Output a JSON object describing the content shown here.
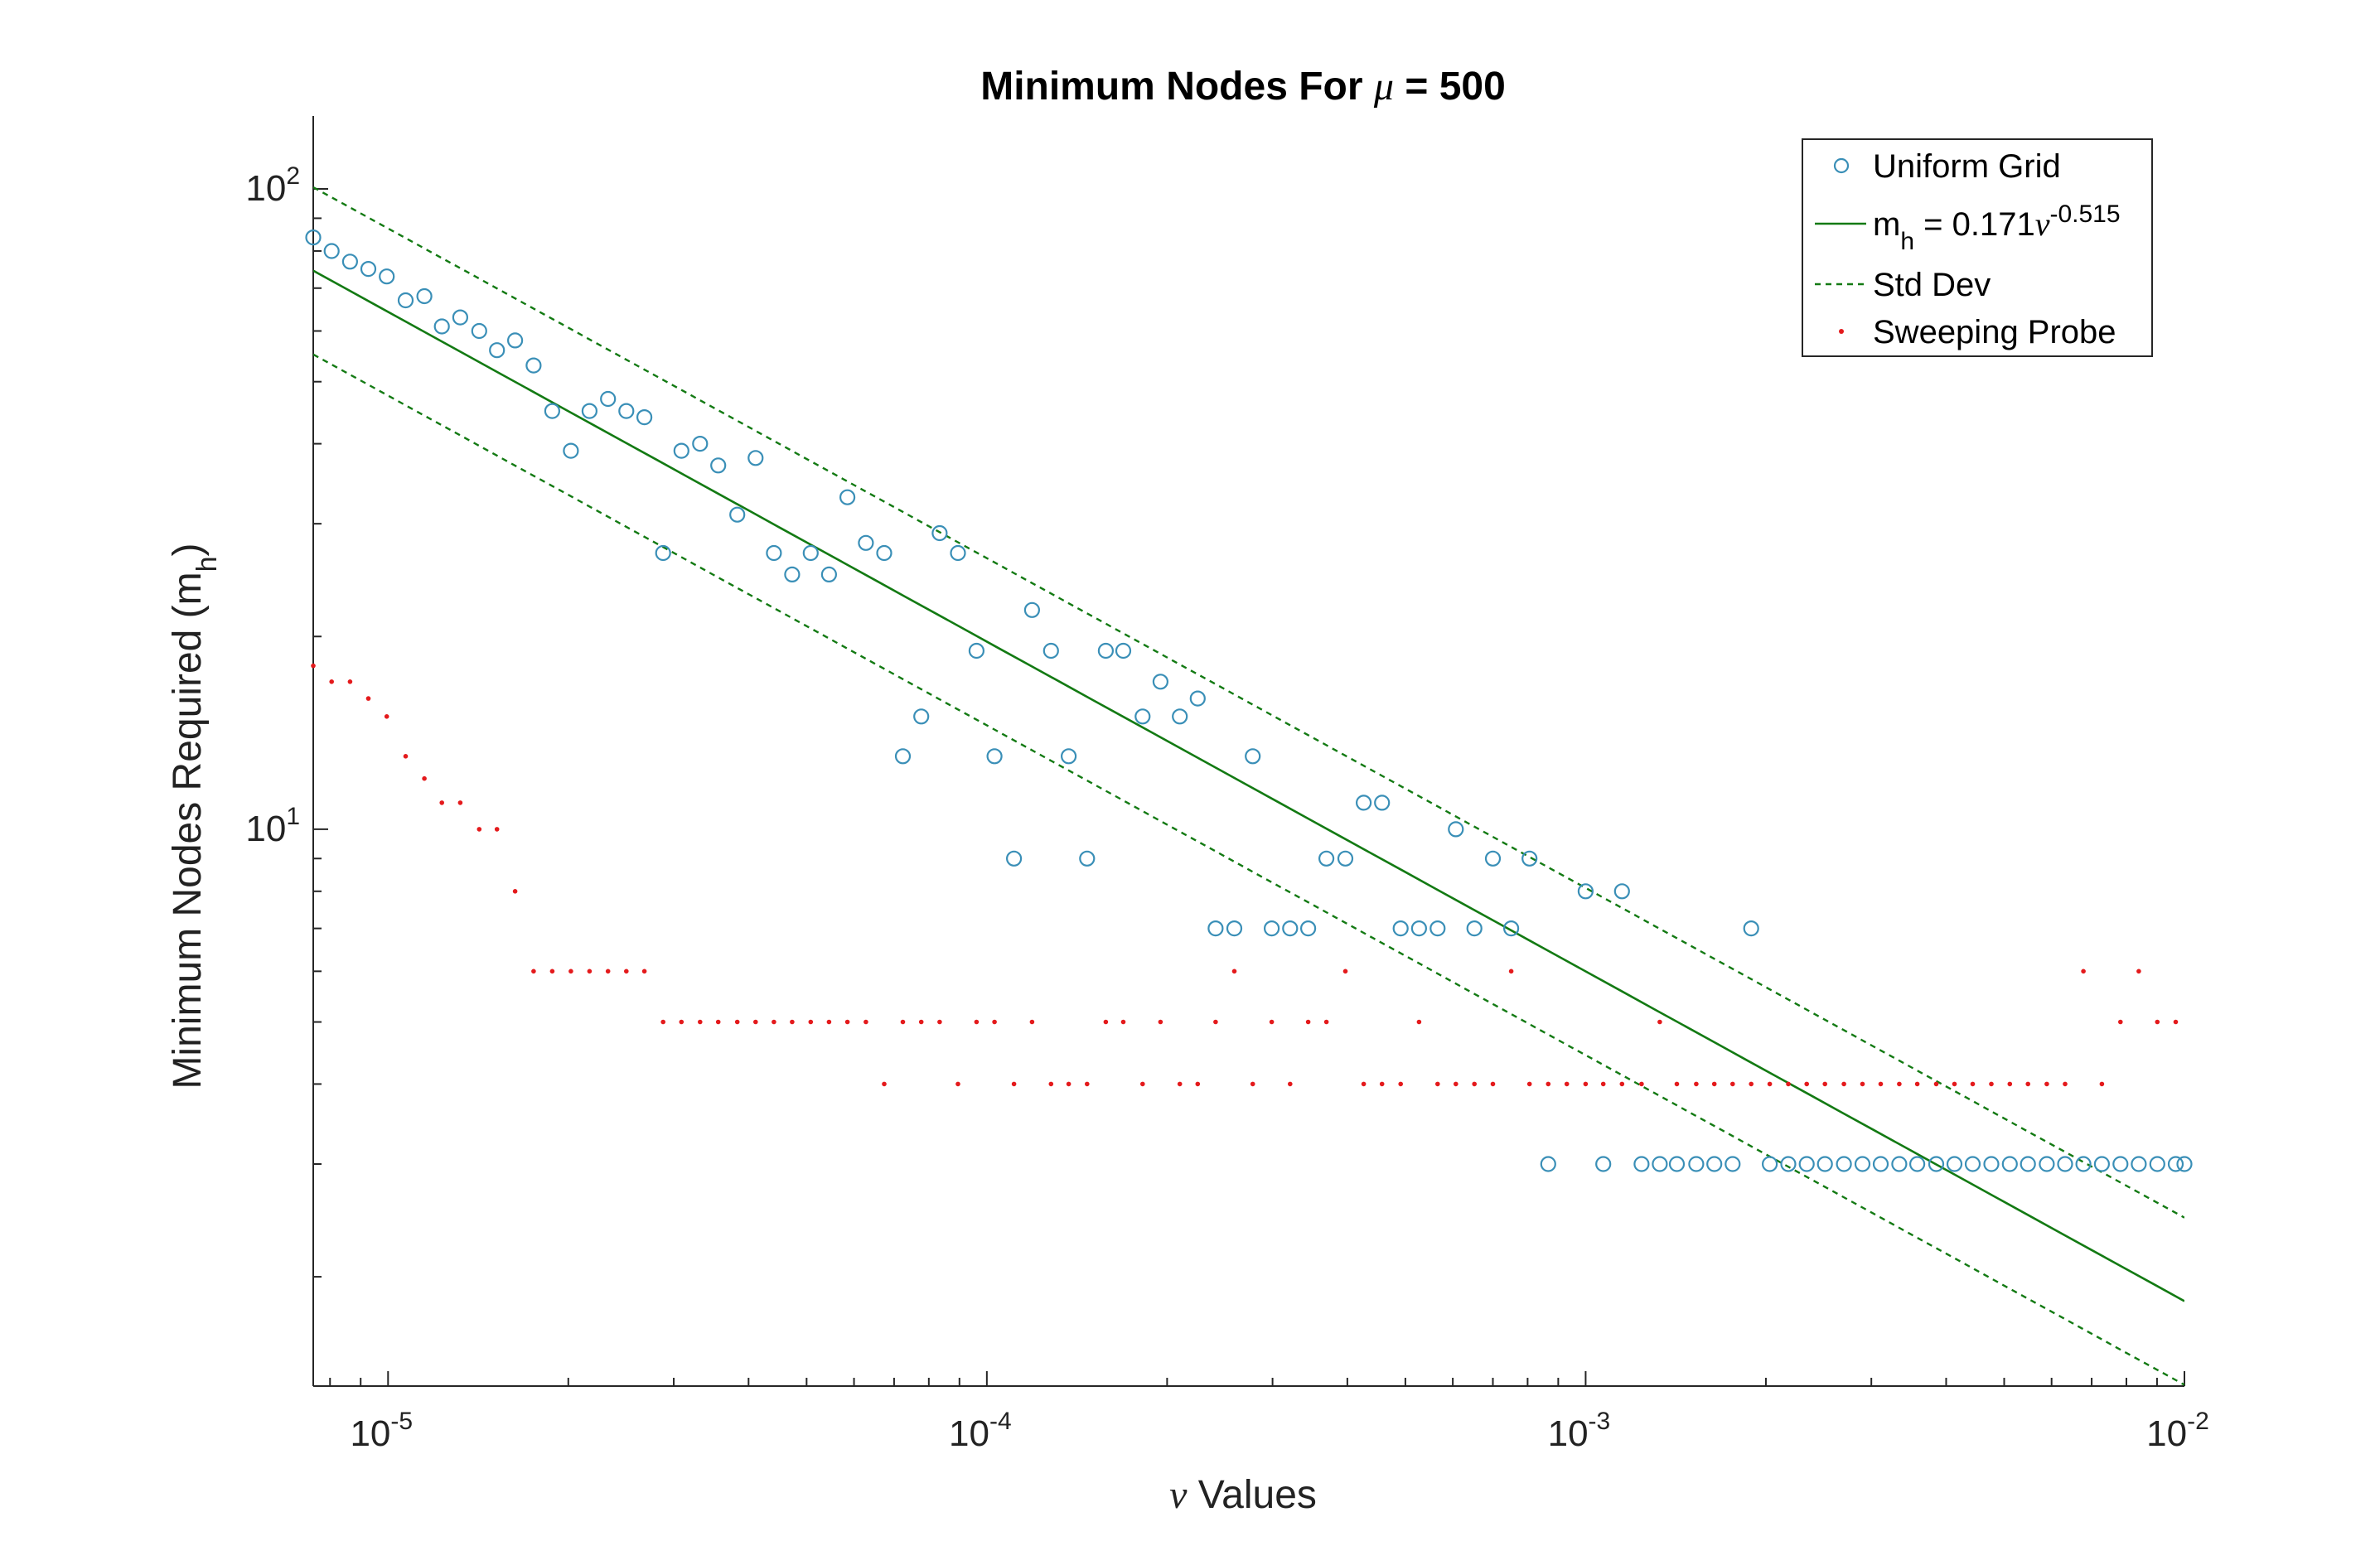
{
  "colors": {
    "uniform": "#3a8fb7",
    "fit": "#137a13",
    "probe": "#e41a1c",
    "axis": "#262626"
  },
  "chart_data": {
    "type": "scatter",
    "title_prefix": "Minimum Nodes For ",
    "title_symbol": "μ",
    "title_suffix": " = 500",
    "xlabel_symbol": "ν",
    "xlabel_suffix": " Values",
    "ylabel_main": "Minimum Nodes Required (m",
    "ylabel_sub": "h",
    "ylabel_end": ")",
    "x_scale": "log",
    "y_scale": "log",
    "xlim": [
      7.5e-06,
      0.01
    ],
    "ylim": [
      1.35,
      130
    ],
    "x_ticks": [
      {
        "base": "10",
        "exp": "-5",
        "value": 1e-05
      },
      {
        "base": "10",
        "exp": "-4",
        "value": 0.0001
      },
      {
        "base": "10",
        "exp": "-3",
        "value": 0.001
      },
      {
        "base": "10",
        "exp": "-2",
        "value": 0.01
      }
    ],
    "y_ticks": [
      {
        "base": "10",
        "exp": "1",
        "value": 10
      },
      {
        "base": "10",
        "exp": "2",
        "value": 100
      }
    ],
    "legend_position": "top-right",
    "legend": {
      "uniform": "Uniform Grid",
      "fit_prefix": "m",
      "fit_sub": "h",
      "fit_mid": " = 0.171",
      "fit_symbol": "ν",
      "fit_exp": "-0.515",
      "std": "Std Dev",
      "probe": "Sweeping Probe"
    },
    "fit": {
      "a": 0.171,
      "b": -0.515
    },
    "std_upper_factor": 1.35,
    "std_lower_factor": 0.74,
    "uniform_grid": [
      [
        7.5e-06,
        84
      ],
      [
        8.05e-06,
        80
      ],
      [
        8.64e-06,
        77
      ],
      [
        9.27e-06,
        75
      ],
      [
        9.95e-06,
        73
      ],
      [
        1.07e-05,
        67
      ],
      [
        1.15e-05,
        68
      ],
      [
        1.23e-05,
        61
      ],
      [
        1.32e-05,
        63
      ],
      [
        1.42e-05,
        60
      ],
      [
        1.52e-05,
        56
      ],
      [
        1.63e-05,
        58
      ],
      [
        1.75e-05,
        53
      ],
      [
        1.88e-05,
        45
      ],
      [
        2.02e-05,
        39
      ],
      [
        2.17e-05,
        45
      ],
      [
        2.33e-05,
        47
      ],
      [
        2.5e-05,
        45
      ],
      [
        2.68e-05,
        44
      ],
      [
        2.88e-05,
        27
      ],
      [
        3.09e-05,
        39
      ],
      [
        3.32e-05,
        40
      ],
      [
        3.56e-05,
        37
      ],
      [
        3.83e-05,
        31
      ],
      [
        4.11e-05,
        38
      ],
      [
        4.41e-05,
        27
      ],
      [
        4.73e-05,
        25
      ],
      [
        5.08e-05,
        27
      ],
      [
        5.45e-05,
        25
      ],
      [
        5.85e-05,
        33
      ],
      [
        6.28e-05,
        28
      ],
      [
        6.74e-05,
        27
      ],
      [
        7.24e-05,
        13
      ],
      [
        7.77e-05,
        15
      ],
      [
        8.34e-05,
        29
      ],
      [
        8.95e-05,
        27
      ],
      [
        9.61e-05,
        19
      ],
      [
        0.000103,
        13
      ],
      [
        0.000111,
        9
      ],
      [
        0.000119,
        22
      ],
      [
        0.000128,
        19
      ],
      [
        0.000137,
        13
      ],
      [
        0.000147,
        9
      ],
      [
        0.000158,
        19
      ],
      [
        0.000169,
        19
      ],
      [
        0.000182,
        15
      ],
      [
        0.000195,
        17
      ],
      [
        0.00021,
        15
      ],
      [
        0.000225,
        16
      ],
      [
        0.000241,
        7
      ],
      [
        0.000259,
        7
      ],
      [
        0.000278,
        13
      ],
      [
        0.000299,
        7
      ],
      [
        0.000321,
        7
      ],
      [
        0.000344,
        7
      ],
      [
        0.000369,
        9
      ],
      [
        0.000397,
        9
      ],
      [
        0.000426,
        11
      ],
      [
        0.000457,
        11
      ],
      [
        0.000491,
        7
      ],
      [
        0.000527,
        7
      ],
      [
        0.000566,
        7
      ],
      [
        0.000607,
        10
      ],
      [
        0.000652,
        7
      ],
      [
        0.0007,
        9
      ],
      [
        0.000751,
        7
      ],
      [
        0.000806,
        9
      ],
      [
        0.000866,
        3
      ],
      [
        0.001,
        8
      ],
      [
        0.00107,
        3
      ],
      [
        0.00115,
        8
      ],
      [
        0.00124,
        3
      ],
      [
        0.00133,
        3
      ],
      [
        0.00142,
        3
      ],
      [
        0.00153,
        3
      ],
      [
        0.00164,
        3
      ],
      [
        0.00176,
        3
      ],
      [
        0.00189,
        7
      ],
      [
        0.00203,
        3
      ],
      [
        0.00218,
        3
      ],
      [
        0.00234,
        3
      ],
      [
        0.00251,
        3
      ],
      [
        0.0027,
        3
      ],
      [
        0.0029,
        3
      ],
      [
        0.00311,
        3
      ],
      [
        0.00334,
        3
      ],
      [
        0.00358,
        3
      ],
      [
        0.00385,
        3
      ],
      [
        0.00413,
        3
      ],
      [
        0.00443,
        3
      ],
      [
        0.00476,
        3
      ],
      [
        0.00511,
        3
      ],
      [
        0.00548,
        3
      ],
      [
        0.00589,
        3
      ],
      [
        0.00632,
        3
      ],
      [
        0.00678,
        3
      ],
      [
        0.00728,
        3
      ],
      [
        0.00782,
        3
      ],
      [
        0.00839,
        3
      ],
      [
        0.00901,
        3
      ],
      [
        0.00967,
        3
      ],
      [
        0.01,
        3
      ]
    ],
    "sweeping_probe": [
      [
        7.5e-06,
        18
      ],
      [
        8.05e-06,
        17
      ],
      [
        8.64e-06,
        17
      ],
      [
        9.27e-06,
        16
      ],
      [
        9.95e-06,
        15
      ],
      [
        1.07e-05,
        13
      ],
      [
        1.15e-05,
        12
      ],
      [
        1.23e-05,
        11
      ],
      [
        1.32e-05,
        11
      ],
      [
        1.42e-05,
        10
      ],
      [
        1.52e-05,
        10
      ],
      [
        1.63e-05,
        8
      ],
      [
        1.75e-05,
        6
      ],
      [
        1.88e-05,
        6
      ],
      [
        2.02e-05,
        6
      ],
      [
        2.17e-05,
        6
      ],
      [
        2.33e-05,
        6
      ],
      [
        2.5e-05,
        6
      ],
      [
        2.68e-05,
        6
      ],
      [
        2.88e-05,
        5
      ],
      [
        3.09e-05,
        5
      ],
      [
        3.32e-05,
        5
      ],
      [
        3.56e-05,
        5
      ],
      [
        3.83e-05,
        5
      ],
      [
        4.11e-05,
        5
      ],
      [
        4.41e-05,
        5
      ],
      [
        4.73e-05,
        5
      ],
      [
        5.08e-05,
        5
      ],
      [
        5.45e-05,
        5
      ],
      [
        5.85e-05,
        5
      ],
      [
        6.28e-05,
        5
      ],
      [
        6.74e-05,
        4
      ],
      [
        7.24e-05,
        5
      ],
      [
        7.77e-05,
        5
      ],
      [
        8.34e-05,
        5
      ],
      [
        8.95e-05,
        4
      ],
      [
        9.61e-05,
        5
      ],
      [
        0.000103,
        5
      ],
      [
        0.000111,
        4
      ],
      [
        0.000119,
        5
      ],
      [
        0.000128,
        4
      ],
      [
        0.000137,
        4
      ],
      [
        0.000147,
        4
      ],
      [
        0.000158,
        5
      ],
      [
        0.000169,
        5
      ],
      [
        0.000182,
        4
      ],
      [
        0.000195,
        5
      ],
      [
        0.00021,
        4
      ],
      [
        0.000225,
        4
      ],
      [
        0.000241,
        5
      ],
      [
        0.000259,
        6
      ],
      [
        0.000278,
        4
      ],
      [
        0.000299,
        5
      ],
      [
        0.000321,
        4
      ],
      [
        0.000344,
        5
      ],
      [
        0.000369,
        5
      ],
      [
        0.000397,
        6
      ],
      [
        0.000426,
        4
      ],
      [
        0.000457,
        4
      ],
      [
        0.000491,
        4
      ],
      [
        0.000527,
        5
      ],
      [
        0.000566,
        4
      ],
      [
        0.000607,
        4
      ],
      [
        0.000652,
        4
      ],
      [
        0.0007,
        4
      ],
      [
        0.000751,
        6
      ],
      [
        0.000806,
        4
      ],
      [
        0.000866,
        4
      ],
      [
        0.00093,
        4
      ],
      [
        0.001,
        4
      ],
      [
        0.00107,
        4
      ],
      [
        0.00115,
        4
      ],
      [
        0.00124,
        4
      ],
      [
        0.00133,
        5
      ],
      [
        0.00142,
        4
      ],
      [
        0.00153,
        4
      ],
      [
        0.00164,
        4
      ],
      [
        0.00176,
        4
      ],
      [
        0.00189,
        4
      ],
      [
        0.00203,
        4
      ],
      [
        0.00218,
        4
      ],
      [
        0.00234,
        4
      ],
      [
        0.00251,
        4
      ],
      [
        0.0027,
        4
      ],
      [
        0.0029,
        4
      ],
      [
        0.00311,
        4
      ],
      [
        0.00334,
        4
      ],
      [
        0.00358,
        4
      ],
      [
        0.00385,
        4
      ],
      [
        0.00413,
        4
      ],
      [
        0.00443,
        4
      ],
      [
        0.00476,
        4
      ],
      [
        0.00511,
        4
      ],
      [
        0.00548,
        4
      ],
      [
        0.00589,
        4
      ],
      [
        0.00632,
        4
      ],
      [
        0.00678,
        6
      ],
      [
        0.00728,
        4
      ],
      [
        0.00782,
        5
      ],
      [
        0.00839,
        6
      ],
      [
        0.00901,
        5
      ],
      [
        0.00967,
        5
      ]
    ]
  }
}
